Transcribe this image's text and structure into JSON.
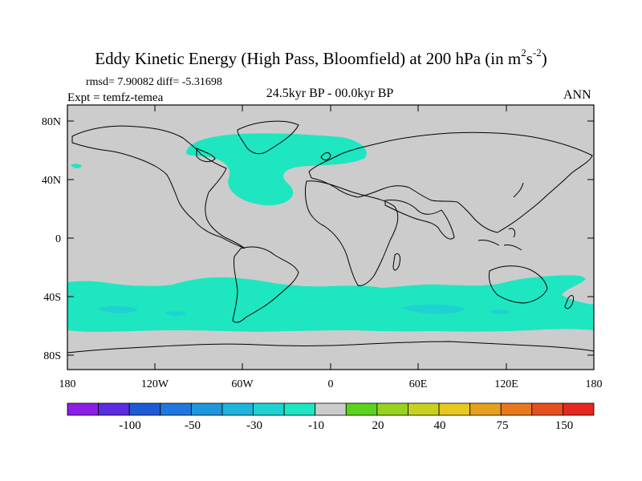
{
  "title_text": "Eddy Kinetic Energy (High Pass, Bloomfield) at 200 hPa (in m",
  "title_unit_exp1": "2",
  "title_unit_mid": "s",
  "title_unit_exp2": "-2",
  "title_close": ")",
  "stats": "rmsd= 7.90082 diff= -5.31698",
  "expt": "Expt = temfz-temea",
  "period": "24.5kyr BP - 00.0kyr BP",
  "season": "ANN",
  "lat_labels": [
    "80N",
    "40N",
    "0",
    "40S",
    "80S"
  ],
  "lon_labels": [
    "180",
    "120W",
    "60W",
    "0",
    "60E",
    "120E",
    "180"
  ],
  "colorbar": {
    "colors": [
      "#8c1ee6",
      "#5a2be0",
      "#1e5ad6",
      "#1e78de",
      "#1e96dc",
      "#1eb4dc",
      "#1ed2d2",
      "#1ee6c0",
      "#cccccc",
      "#5ad21e",
      "#96d21e",
      "#c8d21e",
      "#e6c81e",
      "#e6a01e",
      "#e6781e",
      "#e6501e",
      "#e6281e"
    ],
    "labels": [
      "-100",
      "-50",
      "-30",
      "-10",
      "20",
      "40",
      "75",
      "150"
    ]
  },
  "colors": {
    "land_ocean": "#cccccc",
    "anomaly_fill": "#1ee6c0",
    "anomaly_strong": "#1ed2d2"
  }
}
